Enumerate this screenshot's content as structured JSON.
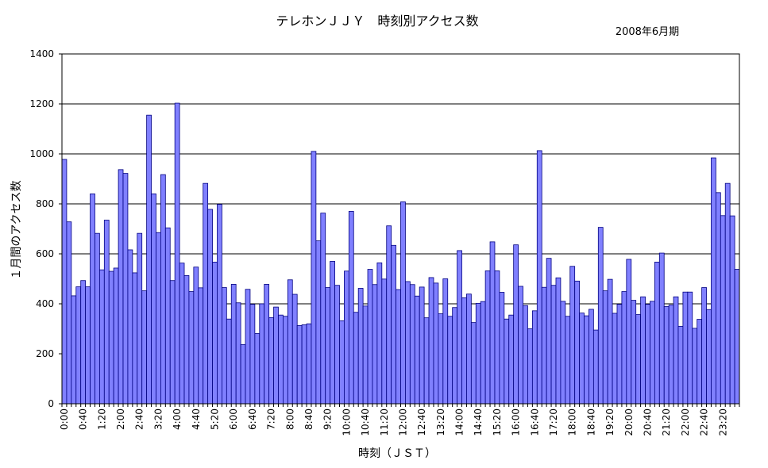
{
  "chart_data": {
    "type": "bar",
    "title": "テレホンＪＪＹ　時刻別アクセス数",
    "subtitle": "2008年6月期",
    "xlabel": "時刻（ＪＳＴ）",
    "ylabel": "１月間のアクセス数",
    "ylim": [
      0,
      1400
    ],
    "yticks": [
      0,
      200,
      400,
      600,
      800,
      1000,
      1200,
      1400
    ],
    "grid": true,
    "legend": "none",
    "bar_color": "#8080ff",
    "bar_edge_color": "#000080",
    "x_interval_minutes": 10,
    "x_tick_labels": [
      "0:00",
      "0:40",
      "1:20",
      "2:00",
      "2:40",
      "3:20",
      "4:00",
      "4:40",
      "5:20",
      "6:00",
      "6:40",
      "7:20",
      "8:00",
      "8:40",
      "9:20",
      "10:00",
      "10:40",
      "11:20",
      "12:00",
      "12:40",
      "13:20",
      "14:00",
      "14:40",
      "15:20",
      "16:00",
      "16:40",
      "17:20",
      "18:00",
      "18:40",
      "19:20",
      "20:00",
      "20:40",
      "21:20",
      "22:00",
      "22:40",
      "23:20"
    ],
    "values": [
      978,
      728,
      432,
      468,
      493,
      468,
      840,
      682,
      536,
      735,
      530,
      543,
      937,
      922,
      616,
      524,
      682,
      452,
      1155,
      840,
      685,
      917,
      704,
      493,
      1203,
      563,
      513,
      449,
      547,
      464,
      882,
      778,
      567,
      798,
      465,
      339,
      478,
      404,
      237,
      458,
      398,
      281,
      400,
      478,
      345,
      387,
      355,
      350,
      496,
      438,
      313,
      316,
      320,
      1010,
      652,
      763,
      465,
      570,
      474,
      332,
      531,
      770,
      366,
      462,
      391,
      538,
      477,
      564,
      499,
      712,
      634,
      457,
      808,
      489,
      477,
      431,
      467,
      344,
      505,
      483,
      360,
      500,
      350,
      385,
      613,
      424,
      439,
      325,
      402,
      409,
      532,
      648,
      532,
      446,
      339,
      355,
      636,
      470,
      393,
      300,
      372,
      1013,
      466,
      582,
      474,
      504,
      410,
      350,
      550,
      491,
      363,
      352,
      378,
      295,
      706,
      452,
      498,
      362,
      398,
      449,
      578,
      414,
      357,
      428,
      398,
      410,
      567,
      603,
      389,
      395,
      428,
      310,
      447,
      447,
      302,
      338,
      465,
      377,
      984,
      845,
      753,
      882,
      752,
      538
    ]
  }
}
